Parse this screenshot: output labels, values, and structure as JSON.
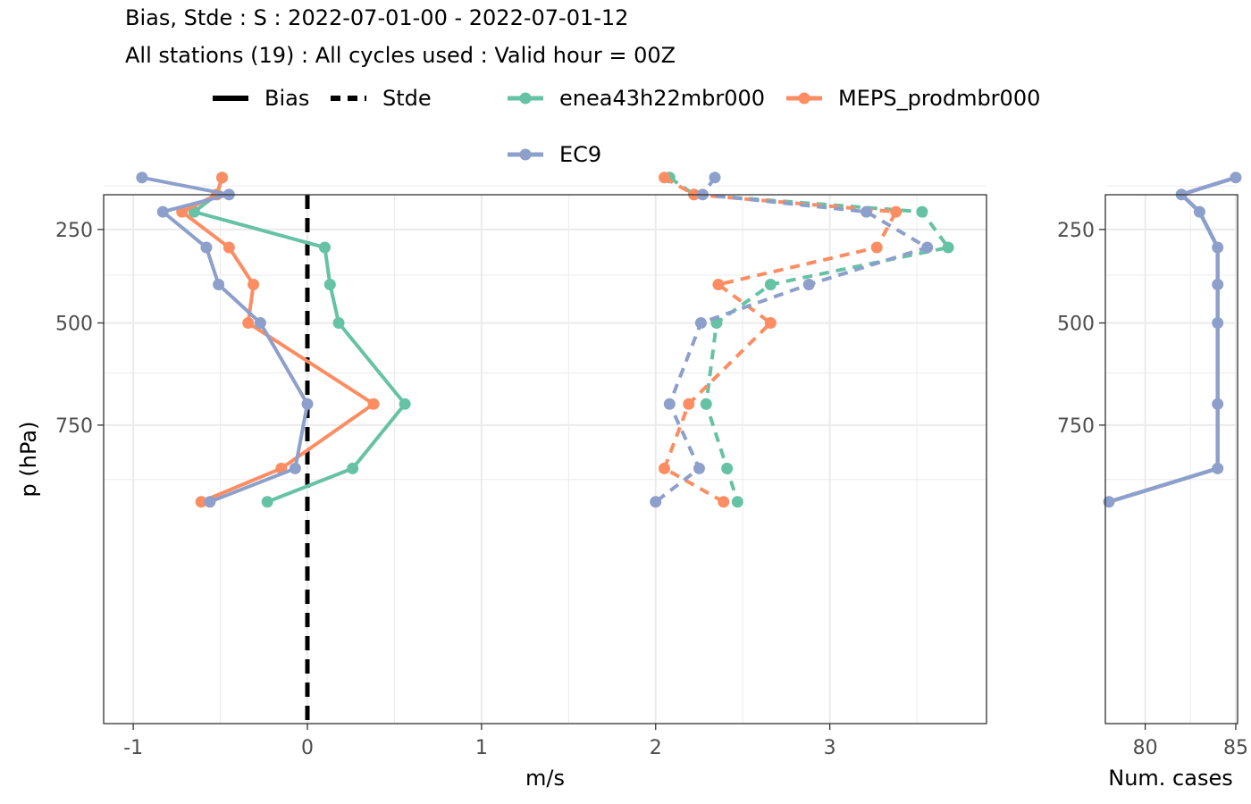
{
  "chart_data": [
    {
      "type": "line",
      "title": "Bias, Stde : S : 2022-07-01-00 - 2022-07-01-12",
      "subtitle": "All stations (19) : All cycles used : Valid hour = 00Z",
      "xlabel": "m/s",
      "ylabel": "p (hPa)",
      "xlim": [
        -1.17,
        3.9
      ],
      "ylim": [
        1000,
        30
      ],
      "y_scale": "reversed",
      "x_ticks": [
        "-1",
        "0",
        "1",
        "2",
        "3"
      ],
      "y_ticks": [
        "250",
        "500",
        "750"
      ],
      "grid": true,
      "legend_position": "top",
      "linetype_legend": [
        {
          "label": "Bias",
          "dash": "solid"
        },
        {
          "label": "Stde",
          "dash": "dashed"
        }
      ],
      "zero_line": 0,
      "pressure_levels": [
        100,
        150,
        200,
        300,
        400,
        500,
        700,
        850,
        925
      ],
      "series": [
        {
          "name": "enea43h22mbr000",
          "color": "#66C2A5",
          "bias": [
            -0.49,
            -0.52,
            -0.65,
            0.1,
            0.13,
            0.18,
            0.56,
            0.26,
            -0.23
          ],
          "stde": [
            2.08,
            2.22,
            3.53,
            3.68,
            2.66,
            2.35,
            2.29,
            2.41,
            2.47
          ]
        },
        {
          "name": "MEPS_prodmbr000",
          "color": "#FC8D62",
          "bias": [
            -0.49,
            -0.52,
            -0.72,
            -0.45,
            -0.31,
            -0.34,
            0.38,
            -0.15,
            -0.61
          ],
          "stde": [
            2.05,
            2.22,
            3.38,
            3.27,
            2.36,
            2.66,
            2.19,
            2.05,
            2.39
          ]
        },
        {
          "name": "EC9",
          "color": "#8DA0CB",
          "bias": [
            -0.95,
            -0.45,
            -0.83,
            -0.58,
            -0.51,
            -0.27,
            0.0,
            -0.07,
            -0.56
          ],
          "stde": [
            2.34,
            2.27,
            3.21,
            3.56,
            2.88,
            2.26,
            2.08,
            2.25,
            2.0
          ]
        }
      ]
    },
    {
      "type": "line",
      "xlabel": "Num. cases",
      "xlim": [
        77.8,
        85.1
      ],
      "ylim": [
        1000,
        30
      ],
      "x_ticks": [
        "80",
        "85"
      ],
      "y_ticks": [
        "250",
        "500",
        "750"
      ],
      "grid": true,
      "pressure_levels": [
        100,
        150,
        200,
        300,
        400,
        500,
        700,
        850,
        925
      ],
      "series": [
        {
          "color": "#8DA0CB",
          "values": [
            85,
            82,
            83,
            84,
            84,
            84,
            84,
            84,
            78
          ]
        }
      ]
    }
  ]
}
